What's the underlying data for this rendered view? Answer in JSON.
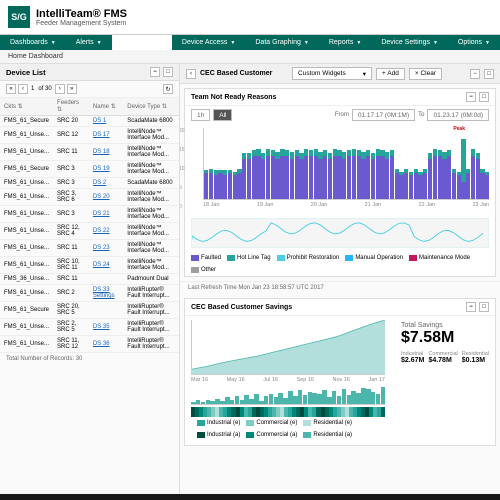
{
  "header": {
    "logo_text": "S/G",
    "title": "IntelliTeam® FMS",
    "subtitle": "Feeder Management System"
  },
  "nav": {
    "items": [
      "Dashboards",
      "Alerts",
      "Device Access",
      "Data Graphing",
      "Reports",
      "Device Settings",
      "Options"
    ]
  },
  "breadcrumb": "Home Dashboard",
  "device_list": {
    "title": "Device List",
    "pager_text": "of 30",
    "page": "1",
    "columns": [
      "Ckts",
      "Feeders",
      "Name",
      "Device Type"
    ],
    "rows": [
      [
        "FMS_61_Secure",
        "SRC 20",
        "DS 1",
        "ScadaMate 6800"
      ],
      [
        "FMS_61_Unse...",
        "SRC 12",
        "DS 17",
        "IntelliNode™ Interface Mod..."
      ],
      [
        "FMS_61_Unse...",
        "SRC 11",
        "DS 18",
        "IntelliNode™ Interface Mod..."
      ],
      [
        "FMS_61_Secure",
        "SRC 3",
        "DS 19",
        "IntelliNode™ Interface Mod..."
      ],
      [
        "FMS_61_Unse...",
        "SRC 3",
        "DS 2",
        "ScadaMate 6800"
      ],
      [
        "FMS_61_Unse...",
        "SRC 3, SRC 6",
        "DS 20",
        "IntelliNode™ Interface Mod..."
      ],
      [
        "FMS_61_Unse...",
        "SRC 3",
        "DS 21",
        "IntelliNode™ Interface Mod..."
      ],
      [
        "FMS_61_Unse...",
        "SRC 12, SRC 4",
        "DS 22",
        "IntelliNode™ Interface Mod..."
      ],
      [
        "FMS_61_Unse...",
        "SRC 11",
        "DS 23",
        "IntelliNode™ Interface Mod..."
      ],
      [
        "FMS_61_Unse...",
        "SRC 10, SRC 11",
        "DS 24",
        "IntelliNode™ Interface Mod..."
      ],
      [
        "FMS_36_Unse...",
        "SRC 11",
        "",
        "Padmount Dual"
      ],
      [
        "FMS_61_Unse...",
        "SRC 2",
        "DS 33 Settings",
        "IntelliRupter® Fault Interrupt..."
      ],
      [
        "FMS_61_Secure",
        "SRC 20, SRC 5",
        "",
        "IntelliRupter® Fault Interrupt..."
      ],
      [
        "FMS_61_Unse...",
        "SRC 2, SRC 5",
        "DS 35",
        "IntelliRupter® Fault Interrupt..."
      ],
      [
        "FMS_61_Unse...",
        "SRC 11, SRC 12",
        "DS 36",
        "IntelliRupter® Fault Interrupt..."
      ]
    ],
    "records_label": "Total Number of Records: 30"
  },
  "widget_bar": {
    "panel_name": "CEC Based Customer",
    "select_label": "Custom Widgets",
    "add_label": "+ Add",
    "clear_label": "× Clear"
  },
  "not_ready": {
    "title": "Team Not Ready Reasons",
    "from_label": "From",
    "to_label": "To",
    "from_val": "01.17.17 (0M:1M)",
    "to_val": "01.23.17 (0M:0d)",
    "peak_label": "Peak",
    "y_ticks": [
      "20",
      "15",
      "10",
      "5",
      "0"
    ],
    "x_ticks": [
      "18 Jan",
      "19 Jan",
      "20 Jan",
      "21 Jan",
      "22 Jan",
      "23 Jan"
    ],
    "bars": [
      [
        18,
        2,
        0,
        0
      ],
      [
        18,
        3,
        0,
        0
      ],
      [
        17,
        3,
        0,
        0
      ],
      [
        18,
        2,
        0,
        0
      ],
      [
        17,
        3,
        0,
        0
      ],
      [
        18,
        2,
        0,
        0
      ],
      [
        17,
        2,
        0,
        0
      ],
      [
        18,
        3,
        0,
        0
      ],
      [
        28,
        4,
        0,
        0
      ],
      [
        28,
        4,
        0,
        0
      ],
      [
        30,
        4,
        0,
        0
      ],
      [
        30,
        5,
        0,
        0
      ],
      [
        28,
        4,
        0,
        0
      ],
      [
        30,
        5,
        0,
        0
      ],
      [
        30,
        4,
        0,
        0
      ],
      [
        28,
        5,
        0,
        0
      ],
      [
        30,
        5,
        0,
        0
      ],
      [
        30,
        4,
        0,
        0
      ],
      [
        28,
        5,
        0,
        0
      ],
      [
        30,
        4,
        0,
        0
      ],
      [
        28,
        4,
        0,
        0
      ],
      [
        30,
        5,
        0,
        0
      ],
      [
        30,
        4,
        0,
        0
      ],
      [
        30,
        5,
        0,
        0
      ],
      [
        28,
        5,
        0,
        0
      ],
      [
        30,
        4,
        0,
        0
      ],
      [
        28,
        4,
        0,
        0
      ],
      [
        30,
        5,
        0,
        0
      ],
      [
        30,
        4,
        0,
        0
      ],
      [
        28,
        5,
        0,
        0
      ],
      [
        30,
        4,
        0,
        0
      ],
      [
        30,
        5,
        0,
        0
      ],
      [
        30,
        4,
        0,
        0
      ],
      [
        28,
        5,
        0,
        0
      ],
      [
        30,
        4,
        0,
        0
      ],
      [
        28,
        4,
        0,
        0
      ],
      [
        30,
        5,
        0,
        0
      ],
      [
        30,
        4,
        0,
        0
      ],
      [
        28,
        5,
        0,
        0
      ],
      [
        30,
        4,
        0,
        0
      ],
      [
        18,
        3,
        0,
        0
      ],
      [
        17,
        2,
        0,
        0
      ],
      [
        18,
        3,
        0,
        0
      ],
      [
        17,
        2,
        0,
        0
      ],
      [
        18,
        3,
        0,
        0
      ],
      [
        17,
        2,
        0,
        0
      ],
      [
        18,
        3,
        0,
        0
      ],
      [
        28,
        4,
        0,
        0
      ],
      [
        30,
        5,
        0,
        0
      ],
      [
        30,
        4,
        0,
        0
      ],
      [
        28,
        5,
        0,
        0
      ],
      [
        30,
        4,
        0,
        0
      ],
      [
        18,
        3,
        0,
        0
      ],
      [
        17,
        2,
        0,
        0
      ],
      [
        12,
        30,
        0,
        0
      ],
      [
        18,
        3,
        0,
        0
      ],
      [
        30,
        5,
        0,
        0
      ],
      [
        28,
        4,
        0,
        0
      ],
      [
        18,
        3,
        0,
        0
      ],
      [
        17,
        2,
        0,
        0
      ]
    ],
    "colors": {
      "seg0": "#6a5acd",
      "seg1": "#26a69a",
      "seg2": "#4dd0e1",
      "seg3": "#c2185b"
    },
    "legend": [
      {
        "label": "Faulted",
        "color": "#6a5acd"
      },
      {
        "label": "Hot Line Tag",
        "color": "#26a69a"
      },
      {
        "label": "Prohibit Restoration",
        "color": "#4dd0e1"
      },
      {
        "label": "Manual Operation",
        "color": "#29b6f6"
      },
      {
        "label": "Maintenance Mode",
        "color": "#c2185b"
      },
      {
        "label": "Other",
        "color": "#9e9e9e"
      }
    ],
    "mini_line_color": "#4dd0e1"
  },
  "refresh_text": "Last Refresh Time Mon Jan 23 18:58:57 UTC 2017",
  "savings": {
    "title": "CEC Based Customer Savings",
    "total_label": "Total Savings",
    "total_value": "$7.58M",
    "kpis": [
      {
        "label": "Industrial",
        "value": "$2.67M"
      },
      {
        "label": "Commercial",
        "value": "$4.78M"
      },
      {
        "label": "Residential",
        "value": "$0.13M"
      }
    ],
    "area_color_top": "#4db6ac",
    "area_color_bot": "#b2dfdb",
    "area_points": [
      5,
      8,
      12,
      15,
      18,
      22,
      26,
      30,
      34,
      38,
      44,
      50,
      55
    ],
    "x_ticks": [
      "Mar 16",
      "May 16",
      "Jul 16",
      "Sep 16",
      "Nov 16",
      "Jan 17"
    ],
    "tiny_bars": [
      8,
      12,
      6,
      14,
      10,
      18,
      9,
      22,
      14,
      26,
      12,
      30,
      18,
      34,
      10,
      28,
      33,
      24,
      38,
      20,
      42,
      28,
      46,
      30,
      40,
      36,
      32,
      48,
      22,
      44,
      26,
      50,
      30,
      44,
      38,
      52,
      49,
      40,
      34,
      56
    ],
    "tiny_bar_color": "#4db6ac",
    "legend": [
      {
        "label": "Industrial (e)",
        "color": "#26a69a"
      },
      {
        "label": "Commercial (e)",
        "color": "#80cbc4"
      },
      {
        "label": "Residential (e)",
        "color": "#b2dfdb"
      },
      {
        "label": "Industrial (a)",
        "color": "#004d40"
      },
      {
        "label": "Commercial (a)",
        "color": "#00897b"
      },
      {
        "label": "Residential (a)",
        "color": "#4db6ac"
      }
    ],
    "heat_colors": [
      "#004d40",
      "#00695c",
      "#00897b",
      "#26a69a",
      "#4db6ac",
      "#80cbc4",
      "#b2dfdb",
      "#4db6ac",
      "#26a69a",
      "#00897b",
      "#00695c",
      "#004d40",
      "#00897b",
      "#4db6ac",
      "#26a69a",
      "#00695c"
    ]
  }
}
